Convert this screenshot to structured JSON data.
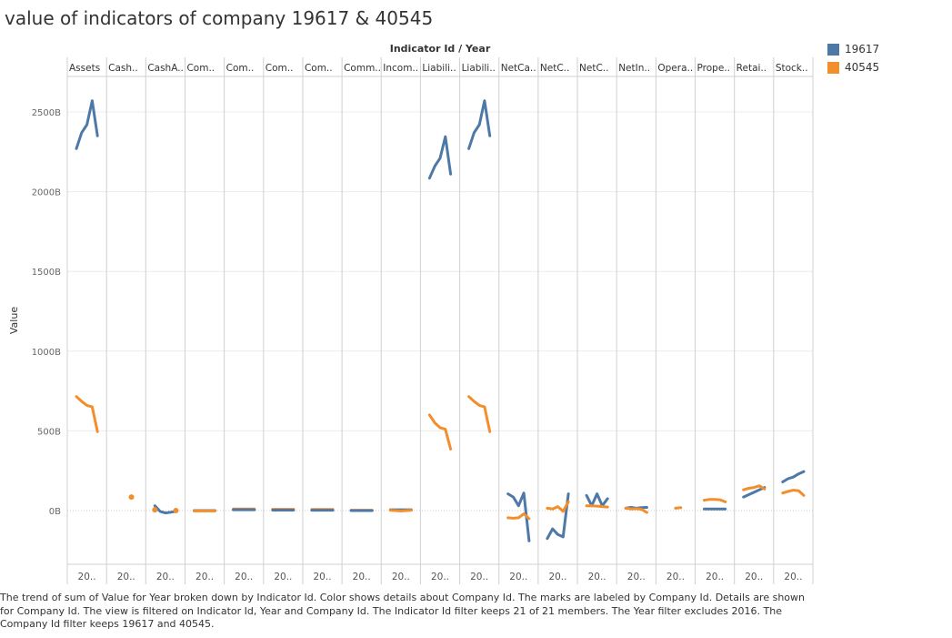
{
  "title": "value of indicators of company 19617 & 40545",
  "caption": "The trend of sum of Value for Year broken down by Indicator Id.  Color shows details about Company Id.  The marks are labeled by Company Id.  Details are shown for Company Id. The view is filtered on Indicator Id, Year and Company Id. The Indicator Id filter keeps 21 of 21 members. The Year filter excludes 2016. The Company Id filter keeps 19617 and 40545.",
  "legend": [
    {
      "name": "19617",
      "color": "#4e79a7"
    },
    {
      "name": "40545",
      "color": "#f28e2b"
    }
  ],
  "chart_data": {
    "type": "line",
    "header_title": "Indicator Id / Year",
    "ylabel": "Value",
    "ylim": [
      -380,
      2740
    ],
    "yticks": [
      0,
      500,
      1000,
      1500,
      2000,
      2500
    ],
    "ytick_labels": [
      "0B",
      "500B",
      "1000B",
      "1500B",
      "2000B",
      "2500B"
    ],
    "grid": true,
    "legend_position": "top-right",
    "x_tick_label": "20..",
    "panes": [
      {
        "label": "Assets",
        "series": [
          {
            "name": "19617",
            "values": [
              2270,
              2370,
              2420,
              2570,
              2350
            ]
          },
          {
            "name": "40545",
            "values": [
              715,
              685,
              660,
              650,
              495
            ]
          }
        ]
      },
      {
        "label": "Cash..",
        "series": [
          {
            "name": "40545",
            "values": [
              null,
              null,
              null,
              85,
              null
            ]
          }
        ]
      },
      {
        "label": "CashA..",
        "series": [
          {
            "name": "19617",
            "values": [
              30,
              -5,
              -15,
              -10,
              -5
            ]
          },
          {
            "name": "40545",
            "values": [
              5,
              null,
              null,
              null,
              0
            ]
          }
        ]
      },
      {
        "label": "Com..",
        "series": [
          {
            "name": "19617",
            "values": [
              0,
              0,
              0,
              0,
              0
            ]
          },
          {
            "name": "40545",
            "values": [
              -2,
              -2,
              -2,
              -2,
              -2
            ]
          }
        ]
      },
      {
        "label": "Com..",
        "series": [
          {
            "name": "40545",
            "values": [
              10,
              10,
              10,
              10,
              10
            ]
          },
          {
            "name": "19617",
            "values": [
              5,
              5,
              5,
              5,
              5
            ]
          }
        ]
      },
      {
        "label": "Com..",
        "series": [
          {
            "name": "40545",
            "values": [
              8,
              8,
              8,
              8,
              8
            ]
          },
          {
            "name": "19617",
            "values": [
              3,
              3,
              3,
              3,
              3
            ]
          }
        ]
      },
      {
        "label": "Com..",
        "series": [
          {
            "name": "40545",
            "values": [
              7,
              7,
              7,
              7,
              7
            ]
          },
          {
            "name": "19617",
            "values": [
              2,
              2,
              2,
              2,
              2
            ]
          }
        ]
      },
      {
        "label": "Comm..",
        "series": [
          {
            "name": "40545",
            "values": [
              2,
              2,
              2,
              2,
              2
            ]
          },
          {
            "name": "19617",
            "values": [
              0,
              0,
              0,
              0,
              0
            ]
          }
        ]
      },
      {
        "label": "Incom..",
        "series": [
          {
            "name": "19617",
            "values": [
              5,
              5,
              5,
              5,
              5
            ]
          },
          {
            "name": "40545",
            "values": [
              2,
              0,
              -2,
              0,
              2
            ]
          }
        ]
      },
      {
        "label": "Liabili..",
        "series": [
          {
            "name": "19617",
            "values": [
              2085,
              2160,
              2210,
              2345,
              2110
            ]
          },
          {
            "name": "40545",
            "values": [
              600,
              550,
              520,
              510,
              385
            ]
          }
        ]
      },
      {
        "label": "Liabili..",
        "series": [
          {
            "name": "19617",
            "values": [
              2270,
              2370,
              2420,
              2570,
              2350
            ]
          },
          {
            "name": "40545",
            "values": [
              715,
              685,
              660,
              650,
              495
            ]
          }
        ]
      },
      {
        "label": "NetCa..",
        "series": [
          {
            "name": "19617",
            "values": [
              105,
              85,
              30,
              110,
              -190
            ]
          },
          {
            "name": "40545",
            "values": [
              -45,
              -48,
              -45,
              -20,
              -50
            ]
          }
        ]
      },
      {
        "label": "NetC..",
        "series": [
          {
            "name": "19617",
            "values": [
              -175,
              -115,
              -150,
              -165,
              105
            ]
          },
          {
            "name": "40545",
            "values": [
              15,
              10,
              25,
              -5,
              55
            ]
          }
        ]
      },
      {
        "label": "NetC..",
        "series": [
          {
            "name": "19617",
            "values": [
              95,
              30,
              105,
              30,
              75
            ]
          },
          {
            "name": "40545",
            "values": [
              30,
              30,
              28,
              25,
              22
            ]
          }
        ]
      },
      {
        "label": "NetIn..",
        "series": [
          {
            "name": "19617",
            "values": [
              15,
              20,
              15,
              18,
              20
            ]
          },
          {
            "name": "40545",
            "values": [
              15,
              10,
              12,
              8,
              -12
            ]
          }
        ]
      },
      {
        "label": "Opera..",
        "series": [
          {
            "name": "40545",
            "values": [
              null,
              null,
              15,
              18,
              null
            ]
          }
        ]
      },
      {
        "label": "Prope..",
        "series": [
          {
            "name": "40545",
            "values": [
              65,
              70,
              70,
              68,
              55
            ]
          },
          {
            "name": "19617",
            "values": [
              10,
              10,
              10,
              10,
              10
            ]
          }
        ]
      },
      {
        "label": "Retai..",
        "series": [
          {
            "name": "19617",
            "values": [
              85,
              100,
              115,
              130,
              145
            ]
          },
          {
            "name": "40545",
            "values": [
              130,
              140,
              145,
              155,
              135
            ]
          }
        ]
      },
      {
        "label": "Stock..",
        "series": [
          {
            "name": "19617",
            "values": [
              180,
              200,
              210,
              230,
              245
            ]
          },
          {
            "name": "40545",
            "values": [
              110,
              120,
              128,
              125,
              95
            ]
          }
        ]
      }
    ]
  }
}
